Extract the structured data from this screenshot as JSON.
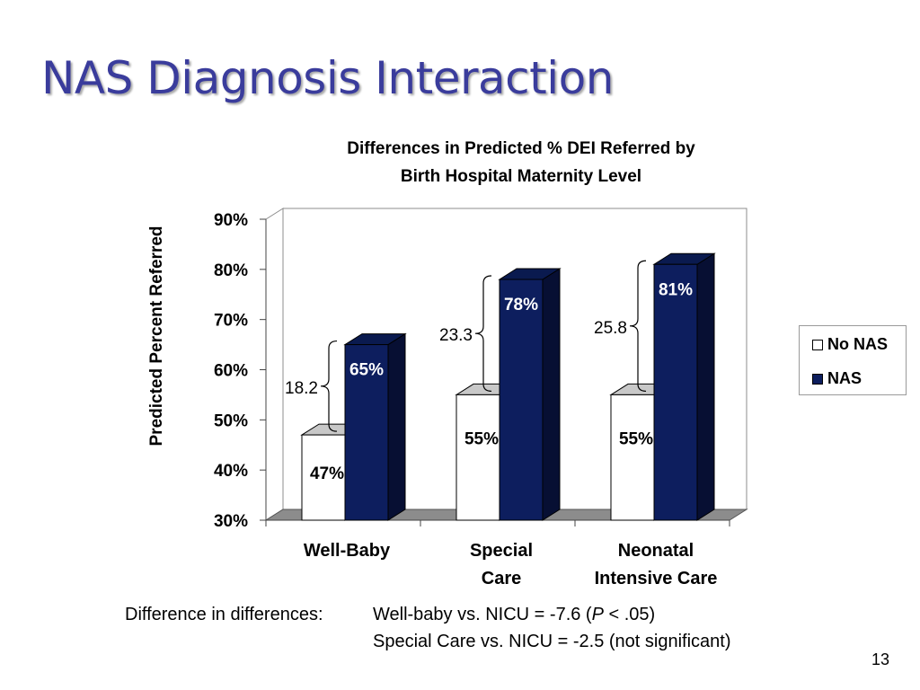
{
  "slide": {
    "title": "NAS Diagnosis Interaction",
    "page_number": "13"
  },
  "chart_data": {
    "type": "bar",
    "title_lines": [
      "Differences in Predicted % DEI Referred by",
      "Birth Hospital Maternity Level"
    ],
    "ylabel": "Predicted Percent Referred",
    "xlabel": "",
    "categories": [
      [
        "Well-Baby"
      ],
      [
        "Special",
        "Care"
      ],
      [
        "Neonatal",
        "Intensive Care"
      ]
    ],
    "series": [
      {
        "name": "No NAS",
        "values": [
          47,
          55,
          55
        ],
        "labels": [
          "47%",
          "55%",
          "55%"
        ],
        "color": "#ffffff"
      },
      {
        "name": "NAS",
        "values": [
          65,
          78,
          81
        ],
        "labels": [
          "65%",
          "78%",
          "81%"
        ],
        "color": "#0d1e5e"
      }
    ],
    "differences": [
      "18.2",
      "23.3",
      "25.8"
    ],
    "ylim": [
      30,
      90
    ],
    "yticks": [
      30,
      40,
      50,
      60,
      70,
      80,
      90
    ],
    "ytick_labels": [
      "30%",
      "40%",
      "50%",
      "60%",
      "70%",
      "80%",
      "90%"
    ],
    "grid": false,
    "three_d": true,
    "legend_position": "right"
  },
  "footnote": {
    "label": "Difference in differences:",
    "line1_prefix": "Well-baby vs. NICU =  -7.6 (",
    "line1_p": "P",
    "line1_suffix": " < .05)",
    "line2": "Special Care vs. NICU = -2.5  (not significant)"
  },
  "colors": {
    "title": "#3a3c9c",
    "nas_bar": "#0d1e5e",
    "no_nas_bar": "#ffffff",
    "floor": "#8c8c8c"
  }
}
